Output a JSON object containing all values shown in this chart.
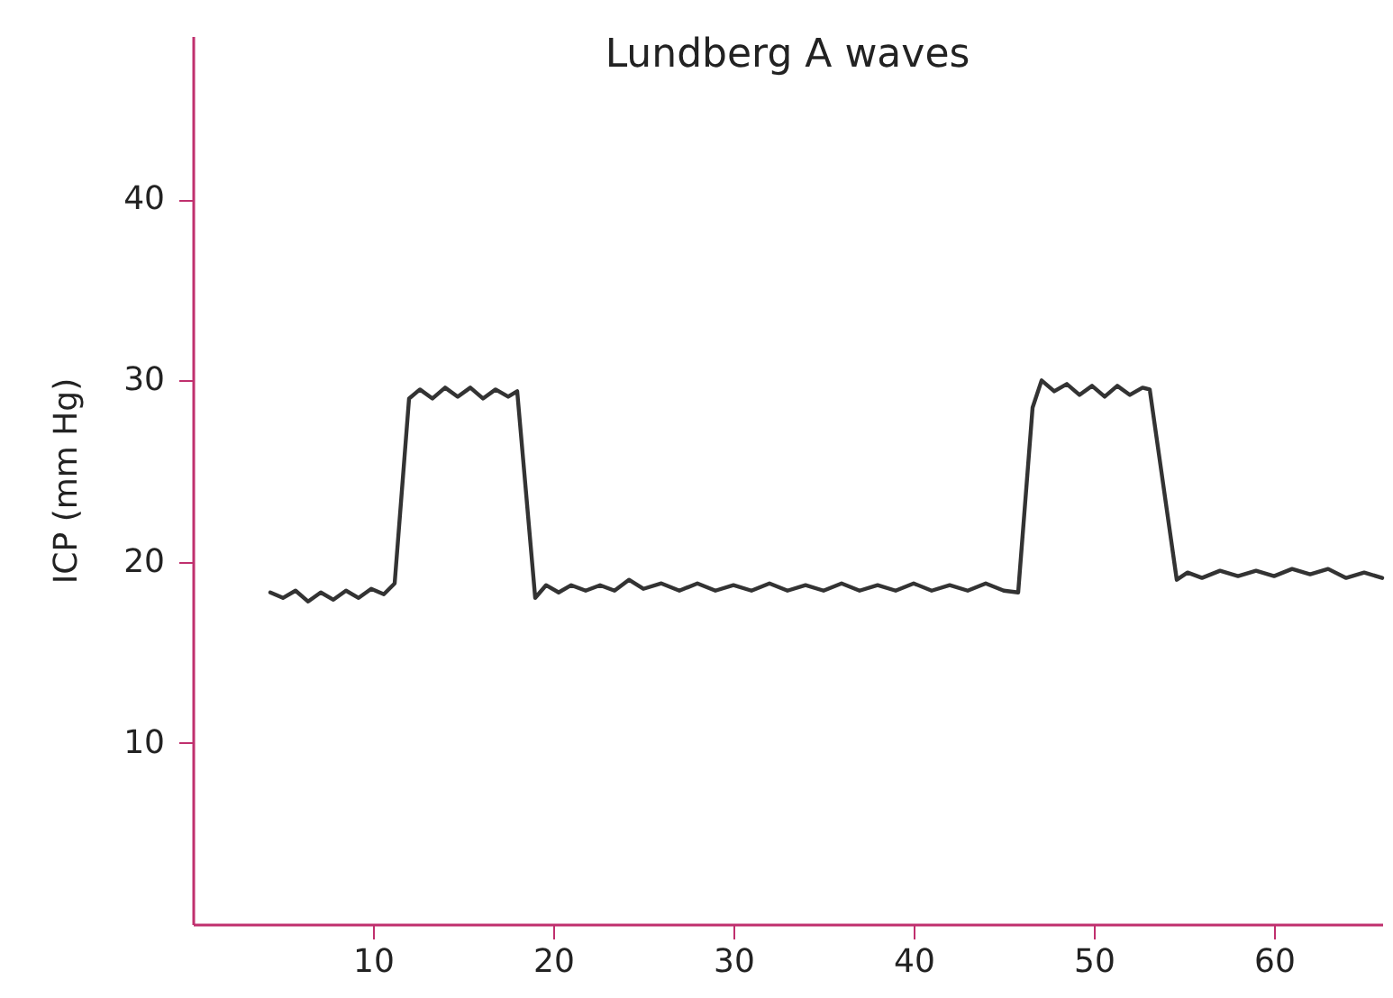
{
  "chart_data": {
    "type": "line",
    "title": "Lundberg A waves",
    "ylabel": "ICP (mm Hg)",
    "x": [
      4.3,
      5,
      5.7,
      6.4,
      7.1,
      7.8,
      8.5,
      9.2,
      9.9,
      10.6,
      11.2,
      12.0,
      12.6,
      13.3,
      14.0,
      14.7,
      15.4,
      16.1,
      16.8,
      17.5,
      18.0,
      19.0,
      19.6,
      20.3,
      21,
      21.8,
      22.6,
      23.4,
      24.2,
      25,
      26,
      27,
      28,
      29,
      30,
      31,
      32,
      33,
      34,
      35,
      36,
      37,
      38,
      39,
      40,
      41,
      42,
      43,
      44,
      45,
      45.8,
      46.6,
      47.1,
      47.8,
      48.5,
      49.2,
      49.9,
      50.6,
      51.3,
      52.0,
      52.7,
      53.1,
      54.6,
      55.2,
      56,
      57,
      58,
      59,
      60,
      61,
      62,
      63,
      64,
      65,
      66
    ],
    "series": [
      {
        "color": "#333333",
        "values": [
          18.3,
          18.0,
          18.4,
          17.8,
          18.3,
          17.9,
          18.4,
          18.0,
          18.5,
          18.2,
          18.8,
          29.0,
          29.5,
          29.0,
          29.6,
          29.1,
          29.6,
          29.0,
          29.5,
          29.1,
          29.4,
          18.0,
          18.7,
          18.3,
          18.7,
          18.4,
          18.7,
          18.4,
          19.0,
          18.5,
          18.8,
          18.4,
          18.8,
          18.4,
          18.7,
          18.4,
          18.8,
          18.4,
          18.7,
          18.4,
          18.8,
          18.4,
          18.7,
          18.4,
          18.8,
          18.4,
          18.7,
          18.4,
          18.8,
          18.4,
          18.3,
          28.5,
          30.0,
          29.4,
          29.8,
          29.2,
          29.7,
          29.1,
          29.7,
          29.2,
          29.6,
          29.5,
          19.0,
          19.4,
          19.1,
          19.5,
          19.2,
          19.5,
          19.2,
          19.6,
          19.3,
          19.6,
          19.1,
          19.4,
          19.1
        ]
      }
    ],
    "xlim": [
      0,
      66
    ],
    "ylim": [
      0,
      49
    ],
    "xticks": [
      10,
      20,
      30,
      40,
      50,
      60
    ],
    "yticks": [
      10,
      20,
      30,
      40
    ],
    "grid": false,
    "legend": false,
    "marker": "none",
    "line_style": "solid"
  }
}
